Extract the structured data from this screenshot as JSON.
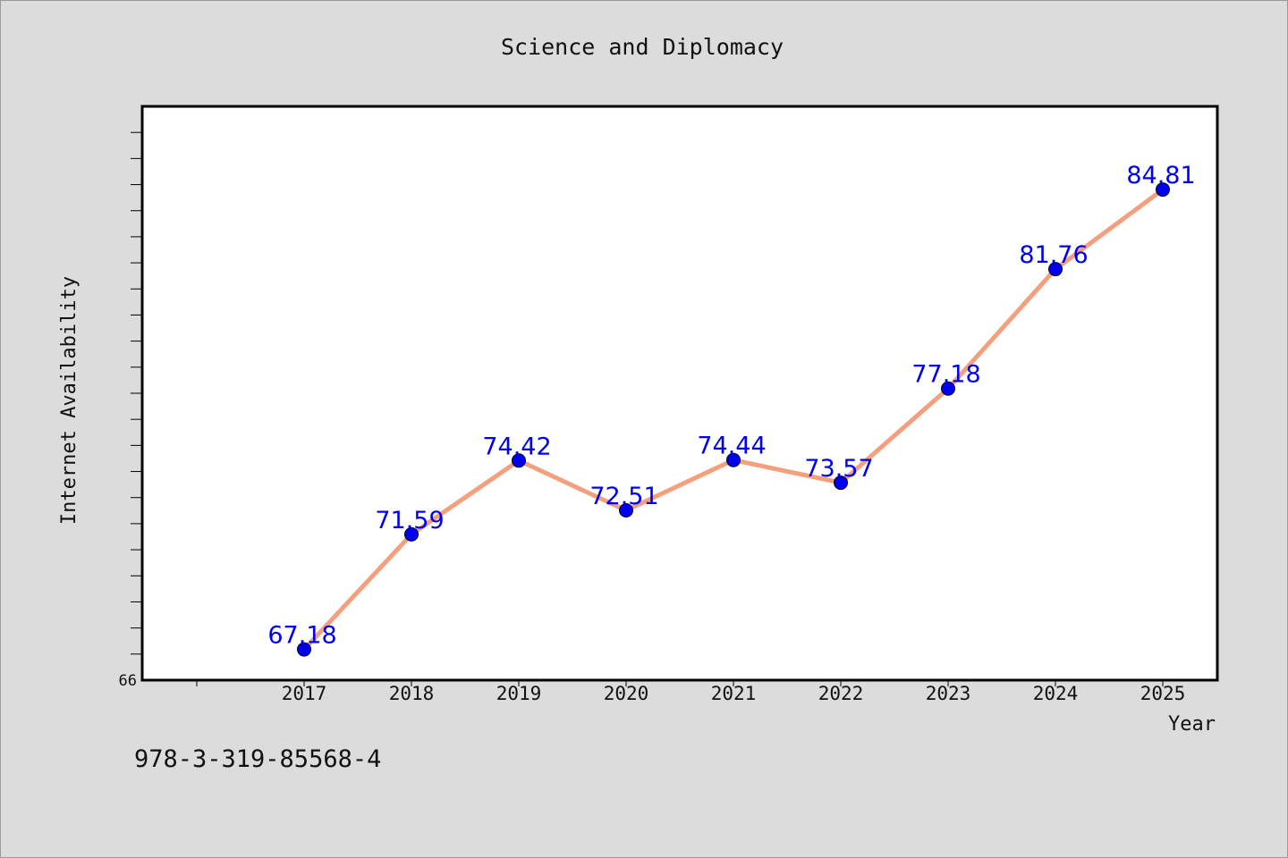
{
  "chart_data": {
    "type": "line",
    "title": "Science and Diplomacy",
    "xlabel": "Year",
    "ylabel": "Internet Availability",
    "categories": [
      "2017",
      "2018",
      "2019",
      "2020",
      "2021",
      "2022",
      "2023",
      "2024",
      "2025"
    ],
    "values": [
      67.18,
      71.59,
      74.42,
      72.51,
      74.44,
      73.57,
      77.18,
      81.76,
      84.81
    ],
    "data_labels": [
      "67.18",
      "71.59",
      "74.42",
      "72.51",
      "74.44",
      "73.57",
      "77.18",
      "81.76",
      "84.81"
    ],
    "ylim": [
      66,
      88
    ],
    "y_tick_labels": [
      "66"
    ],
    "y_minor_tick_step": 1,
    "grid": false,
    "line_color": "#f4a07e",
    "marker_color": "#0000ee",
    "label_color": "#0000ee"
  },
  "footer": {
    "isbn": "978-3-319-85568-4"
  }
}
